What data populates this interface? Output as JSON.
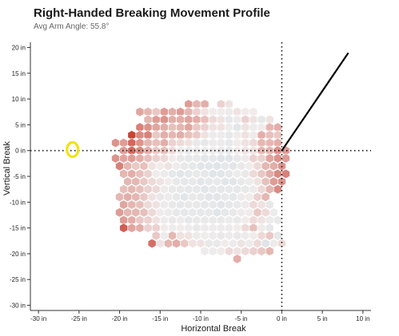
{
  "title": "Right-Handed Breaking Movement Profile",
  "subtitle": "Avg Arm Angle: 55.8°",
  "chart_data": {
    "type": "heatmap",
    "title": "Right-Handed Breaking Movement Profile",
    "subtitle": "Avg Arm Angle: 55.8°",
    "xlabel": "Horizontal Break",
    "ylabel": "Vertical Break",
    "xlim": [
      -31,
      11
    ],
    "ylim": [
      -31,
      21
    ],
    "x_ticks": [
      -30,
      -25,
      -20,
      -15,
      -10,
      -5,
      0,
      5,
      10
    ],
    "x_tick_labels": [
      "-30 in",
      "-25 in",
      "-20 in",
      "-15 in",
      "-10 in",
      "-5 in",
      "0 in",
      "5 in",
      "10 in"
    ],
    "y_ticks": [
      20,
      15,
      10,
      5,
      0,
      -5,
      -10,
      -15,
      -20,
      -25,
      -30
    ],
    "y_tick_labels": [
      "20 in",
      "15 in",
      "10 in",
      "5 in",
      "0 in",
      "-5 in",
      "-10 in",
      "-15 in",
      "-20 in",
      "-25 in",
      "-30 in"
    ],
    "colors": {
      "high": "#c83a2d",
      "mid": "#f1eceb",
      "low": "#a9cfe2",
      "marker": "#f2e100",
      "arm_line": "#000000"
    },
    "arm_angle_deg": 55.8,
    "average_marker": {
      "x": -25.8,
      "y": 0.2
    },
    "hex_rows": [
      {
        "y": 9,
        "x_start": -11.5,
        "values": [
          0.45,
          0.3,
          0.35,
          null,
          0.15,
          0.05
        ]
      },
      {
        "y": 7.5,
        "x_start": -17.5,
        "values": [
          0.4,
          0.3,
          0.2,
          0.45,
          0.35,
          0.45,
          0.3,
          0.15,
          0.05,
          0.0,
          0.0,
          -0.05,
          0.05,
          0.0,
          0.0
        ]
      },
      {
        "y": 6,
        "x_start": -16.5,
        "values": [
          0.3,
          0.45,
          0.5,
          0.35,
          0.35,
          0.4,
          0.35,
          0.25,
          0.1,
          0.05,
          -0.15,
          -0.05,
          0.15,
          0.05,
          -0.15,
          0.05
        ]
      },
      {
        "y": 4.5,
        "x_start": -17.5,
        "values": [
          0.6,
          0.5,
          0.4,
          0.35,
          0.25,
          0.3,
          0.4,
          0.2,
          0.15,
          0.05,
          0.05,
          -0.05,
          -0.2,
          0.05,
          -0.05,
          0.0,
          0.3,
          0.35
        ]
      },
      {
        "y": 3,
        "x_start": -18.5,
        "values": [
          0.95,
          0.55,
          0.6,
          0.2,
          0.35,
          0.3,
          0.35,
          0.25,
          0.2,
          0.05,
          -0.05,
          -0.05,
          -0.15,
          0.0,
          0.05,
          -0.05,
          0.35,
          0.25,
          0.2
        ]
      },
      {
        "y": 1.5,
        "x_start": -20.5,
        "values": [
          0.5,
          0.45,
          0.75,
          0.5,
          0.3,
          0.25,
          0.35,
          0.15,
          0.1,
          0.05,
          -0.1,
          -0.15,
          -0.05,
          -0.05,
          -0.1,
          0.0,
          0.05,
          0.1,
          0.3,
          0.3,
          0.35
        ]
      },
      {
        "y": 0,
        "x_start": -19.5,
        "values": [
          0.45,
          0.75,
          0.55,
          0.35,
          0.2,
          0.25,
          0.1,
          -0.05,
          -0.1,
          -0.05,
          -0.05,
          -0.05,
          -0.1,
          -0.15,
          0.0,
          0.05,
          0.05,
          0.3,
          0.3,
          0.5,
          0.45
        ]
      },
      {
        "y": -1.5,
        "x_start": -20.5,
        "values": [
          0.5,
          0.4,
          0.45,
          0.35,
          0.25,
          0.15,
          0.1,
          0.0,
          -0.1,
          -0.15,
          -0.1,
          -0.2,
          -0.15,
          -0.25,
          -0.25,
          -0.1,
          -0.05,
          0.15,
          0.15,
          0.4,
          0.5,
          0.45
        ]
      },
      {
        "y": -3,
        "x_start": -20.0,
        "values": [
          0.6,
          0.3,
          0.2,
          0.25,
          0.05,
          0.0,
          0.05,
          -0.05,
          -0.1,
          -0.15,
          -0.2,
          -0.2,
          -0.25,
          -0.15,
          -0.2,
          -0.1,
          0.0,
          0.1,
          0.3,
          0.35,
          0.5
        ]
      },
      {
        "y": -4.5,
        "x_start": -19.5,
        "values": [
          0.3,
          0.35,
          0.25,
          0.15,
          0.0,
          -0.05,
          -0.15,
          -0.2,
          -0.15,
          -0.1,
          -0.15,
          -0.25,
          -0.2,
          -0.15,
          -0.05,
          -0.1,
          0.1,
          0.2,
          0.35,
          0.55,
          0.6
        ]
      },
      {
        "y": -6,
        "x_start": -19.0,
        "values": [
          0.3,
          0.3,
          0.2,
          0.1,
          0.05,
          0.0,
          -0.1,
          -0.15,
          -0.1,
          -0.2,
          -0.15,
          -0.1,
          -0.2,
          -0.2,
          -0.1,
          -0.05,
          0.05,
          0.25,
          0.45,
          0.5
        ]
      },
      {
        "y": -7.5,
        "x_start": -19.5,
        "values": [
          0.25,
          0.3,
          0.25,
          0.15,
          0.1,
          -0.05,
          -0.1,
          -0.1,
          -0.15,
          -0.15,
          -0.2,
          -0.1,
          -0.15,
          -0.1,
          -0.15,
          -0.1,
          -0.05,
          0.1,
          0.3,
          0.55
        ]
      },
      {
        "y": -9,
        "x_start": -20.0,
        "values": [
          0.3,
          0.35,
          0.3,
          0.2,
          0.05,
          -0.1,
          -0.05,
          -0.15,
          -0.2,
          -0.1,
          -0.15,
          -0.2,
          -0.2,
          -0.1,
          -0.15,
          -0.05,
          0.0,
          0.15,
          0.3
        ]
      },
      {
        "y": -10.5,
        "x_start": -19.5,
        "values": [
          0.4,
          0.3,
          0.25,
          0.1,
          0.05,
          -0.05,
          -0.1,
          -0.15,
          -0.1,
          -0.1,
          -0.15,
          -0.15,
          -0.2,
          -0.15,
          -0.1,
          -0.05,
          0.1,
          0.05,
          -0.15
        ]
      },
      {
        "y": -12,
        "x_start": -20.0,
        "values": [
          0.45,
          0.3,
          0.3,
          0.25,
          0.1,
          0.0,
          -0.05,
          -0.1,
          -0.15,
          -0.1,
          -0.15,
          -0.1,
          -0.25,
          -0.15,
          -0.1,
          -0.05,
          0.0,
          0.2,
          0.1,
          -0.05
        ]
      },
      {
        "y": -13.5,
        "x_start": -19.5,
        "values": [
          0.45,
          0.35,
          0.2,
          0.15,
          0.05,
          -0.05,
          -0.1,
          -0.05,
          -0.15,
          -0.1,
          -0.1,
          -0.1,
          -0.1,
          -0.05,
          -0.1,
          0.0,
          0.1,
          0.05,
          -0.05,
          -0.1
        ]
      },
      {
        "y": -15,
        "x_start": -19.5,
        "values": [
          0.8,
          0.4,
          0.35,
          0.15,
          0.15,
          0.0,
          -0.05,
          0.0,
          -0.05,
          -0.1,
          -0.05,
          -0.05,
          -0.05,
          -0.05,
          0.0,
          0.1,
          0.25,
          -0.05,
          -0.15
        ]
      },
      {
        "y": -16.5,
        "x_start": -15.5,
        "values": [
          0.2,
          -0.05,
          0.3,
          0.05,
          0.05,
          -0.05,
          0.0,
          -0.05,
          -0.1,
          -0.05,
          -0.1,
          -0.05,
          0.0,
          0.1,
          0.2,
          -0.15
        ]
      },
      {
        "y": -18,
        "x_start": -16.0,
        "values": [
          0.7,
          0.05,
          0.3,
          0.35,
          0.2,
          0.05,
          0.05,
          -0.1,
          -0.1,
          0.0,
          -0.05,
          0.05,
          -0.05,
          0.1,
          -0.25,
          -0.05,
          0.1
        ]
      },
      {
        "y": -19.5,
        "x_start": -9.5,
        "values": [
          -0.05,
          -0.05,
          0.0,
          0.1,
          0.05,
          0.1,
          0.15,
          0.2,
          0.3
        ]
      },
      {
        "y": -21,
        "x_start": -5.5,
        "values": [
          0.35
        ]
      }
    ]
  }
}
